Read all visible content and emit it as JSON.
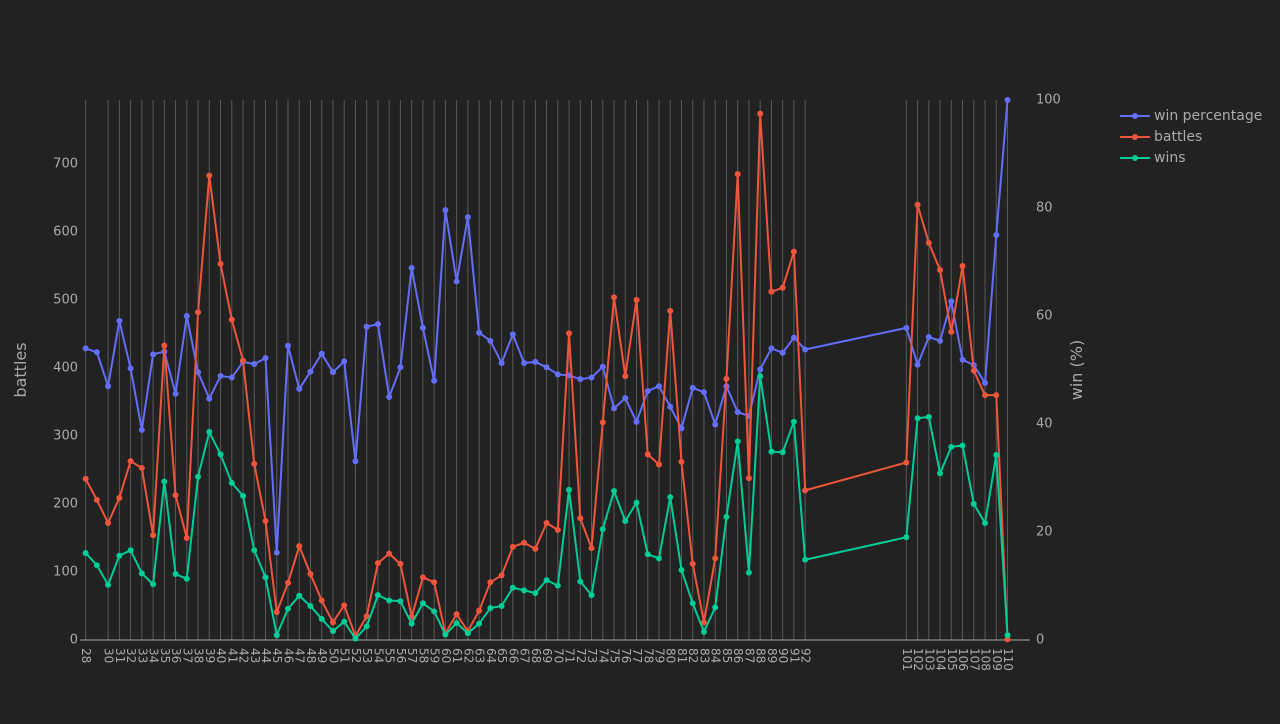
{
  "chart_data": {
    "type": "line",
    "title": "",
    "xlabel": "",
    "ylabel_left": "battles",
    "ylabel_right": "win (%)",
    "x_ticks": [
      28,
      30,
      31,
      32,
      33,
      34,
      35,
      36,
      37,
      38,
      39,
      40,
      41,
      42,
      43,
      44,
      45,
      46,
      47,
      48,
      49,
      50,
      51,
      52,
      53,
      54,
      55,
      56,
      57,
      58,
      59,
      60,
      61,
      62,
      63,
      64,
      65,
      66,
      67,
      68,
      69,
      70,
      71,
      72,
      73,
      74,
      75,
      76,
      77,
      78,
      79,
      80,
      81,
      82,
      83,
      84,
      85,
      86,
      87,
      88,
      89,
      90,
      91,
      92,
      101,
      102,
      103,
      104,
      105,
      106,
      107,
      108,
      109,
      110
    ],
    "x_range": [
      27.5,
      112
    ],
    "ylim_left": [
      0,
      794
    ],
    "ylim_right": [
      0,
      100
    ],
    "yticks_left": [
      0,
      100,
      200,
      300,
      400,
      500,
      600,
      700
    ],
    "yticks_right": [
      0,
      20,
      40,
      60,
      80,
      100
    ],
    "grid": "vertical",
    "legend_position": "top-right",
    "x": [
      28,
      29,
      30,
      31,
      32,
      33,
      34,
      35,
      36,
      37,
      38,
      39,
      40,
      41,
      42,
      43,
      44,
      45,
      46,
      47,
      48,
      49,
      50,
      51,
      52,
      53,
      54,
      55,
      56,
      57,
      58,
      59,
      60,
      61,
      62,
      63,
      64,
      65,
      66,
      67,
      68,
      69,
      70,
      71,
      72,
      73,
      74,
      75,
      76,
      77,
      78,
      79,
      80,
      81,
      82,
      83,
      84,
      85,
      86,
      87,
      88,
      89,
      90,
      91,
      92,
      101,
      102,
      103,
      104,
      105,
      106,
      107,
      108,
      109,
      110
    ],
    "series": [
      {
        "name": "win percentage",
        "axis": "right",
        "color": "#636efa",
        "values": [
          54.0,
          53.3,
          47.0,
          59.1,
          50.3,
          38.9,
          52.9,
          53.4,
          45.6,
          60.0,
          49.6,
          44.7,
          48.9,
          48.6,
          51.5,
          51.1,
          52.2,
          16.2,
          54.5,
          46.5,
          49.7,
          53.0,
          49.6,
          51.6,
          33.1,
          58.0,
          58.5,
          45.0,
          50.5,
          68.9,
          57.8,
          48.0,
          79.6,
          66.4,
          78.3,
          56.9,
          55.4,
          51.3,
          56.6,
          51.3,
          51.5,
          50.5,
          49.2,
          49.0,
          48.3,
          48.6,
          50.6,
          42.9,
          44.8,
          40.4,
          46.1,
          47.0,
          43.2,
          39.2,
          46.7,
          45.9,
          39.9,
          47.0,
          42.2,
          41.5,
          50.1,
          54.0,
          53.2,
          56.0,
          53.8,
          57.8,
          51.0,
          56.1,
          55.4,
          62.7,
          51.9,
          50.9,
          47.6,
          75.0,
          100.0
        ]
      },
      {
        "name": "battles",
        "axis": "left",
        "color": "#ef553b",
        "values": [
          237,
          206,
          172,
          209,
          263,
          253,
          154,
          433,
          213,
          150,
          482,
          683,
          553,
          471,
          411,
          259,
          175,
          41,
          84,
          138,
          97,
          58,
          26,
          51,
          6,
          35,
          113,
          127,
          112,
          34,
          92,
          85,
          10,
          38,
          13,
          43,
          85,
          95,
          137,
          143,
          134,
          172,
          162,
          451,
          179,
          135,
          320,
          504,
          388,
          500,
          273,
          258,
          484,
          262,
          112,
          26,
          120,
          384,
          685,
          238,
          774,
          512,
          518,
          571,
          220,
          261,
          640,
          584,
          544,
          453,
          550,
          396,
          360,
          360,
          1
        ]
      },
      {
        "name": "wins",
        "axis": "left",
        "color": "#00cc96",
        "values": [
          128,
          110,
          81,
          124,
          132,
          98,
          82,
          233,
          97,
          90,
          240,
          306,
          273,
          231,
          212,
          132,
          92,
          7,
          46,
          65,
          50,
          31,
          13,
          27,
          2,
          20,
          66,
          58,
          57,
          24,
          54,
          42,
          8,
          25,
          10,
          24,
          47,
          50,
          77,
          73,
          69,
          88,
          80,
          221,
          86,
          66,
          163,
          219,
          175,
          202,
          126,
          120,
          210,
          103,
          54,
          12,
          48,
          181,
          292,
          99,
          388,
          277,
          276,
          321,
          118,
          151,
          326,
          328,
          245,
          284,
          286,
          200,
          172,
          272,
          7
        ]
      }
    ]
  }
}
